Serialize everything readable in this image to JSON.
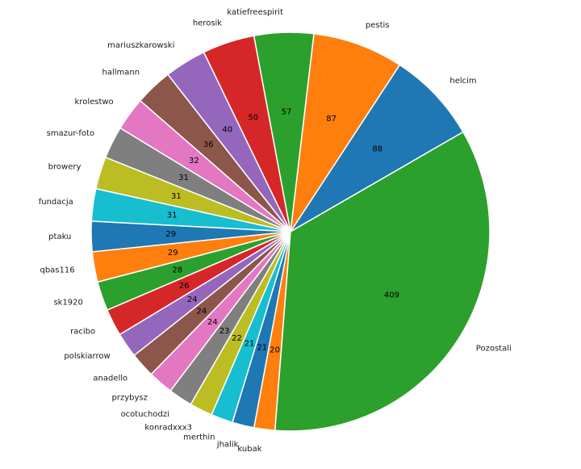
{
  "chart_data": {
    "type": "pie",
    "title": "",
    "categories": [
      "helcim",
      "pestis",
      "katiefreespirit",
      "herosik",
      "mariuszkarowski",
      "hallmann",
      "krolestwo",
      "smazur-foto",
      "browery",
      "fundacja",
      "ptaku",
      "qbas116",
      "sk1920",
      "racibo",
      "polskiarrow",
      "anadello",
      "przybysz",
      "ocotuchodzi",
      "konradxxx3",
      "merthin",
      "jhalik",
      "kubak",
      "Pozostali"
    ],
    "values": [
      88,
      87,
      57,
      50,
      40,
      36,
      32,
      31,
      31,
      31,
      29,
      29,
      28,
      26,
      24,
      24,
      24,
      23,
      22,
      21,
      21,
      20,
      409
    ],
    "value_labels": [
      "88",
      "87",
      "57",
      "50",
      "40",
      "36",
      "32",
      "31",
      "31",
      "31",
      "29",
      "29",
      "28",
      "26",
      "24",
      "24",
      "24",
      "23",
      "22",
      "21",
      "21",
      "20",
      "409"
    ],
    "colors": [
      "#1f77b4",
      "#ff7f0e",
      "#2ca02c",
      "#d62728",
      "#9467bd",
      "#8c564b",
      "#e377c2",
      "#7f7f7f",
      "#bcbd22",
      "#17becf",
      "#1f77b4",
      "#ff7f0e",
      "#2ca02c",
      "#d62728",
      "#9467bd",
      "#8c564b",
      "#e377c2",
      "#7f7f7f",
      "#bcbd22",
      "#17becf",
      "#1f77b4",
      "#ff7f0e",
      "#2ca02c"
    ],
    "start_angle_deg": 30,
    "direction": "counterclockwise",
    "legend": "none"
  }
}
